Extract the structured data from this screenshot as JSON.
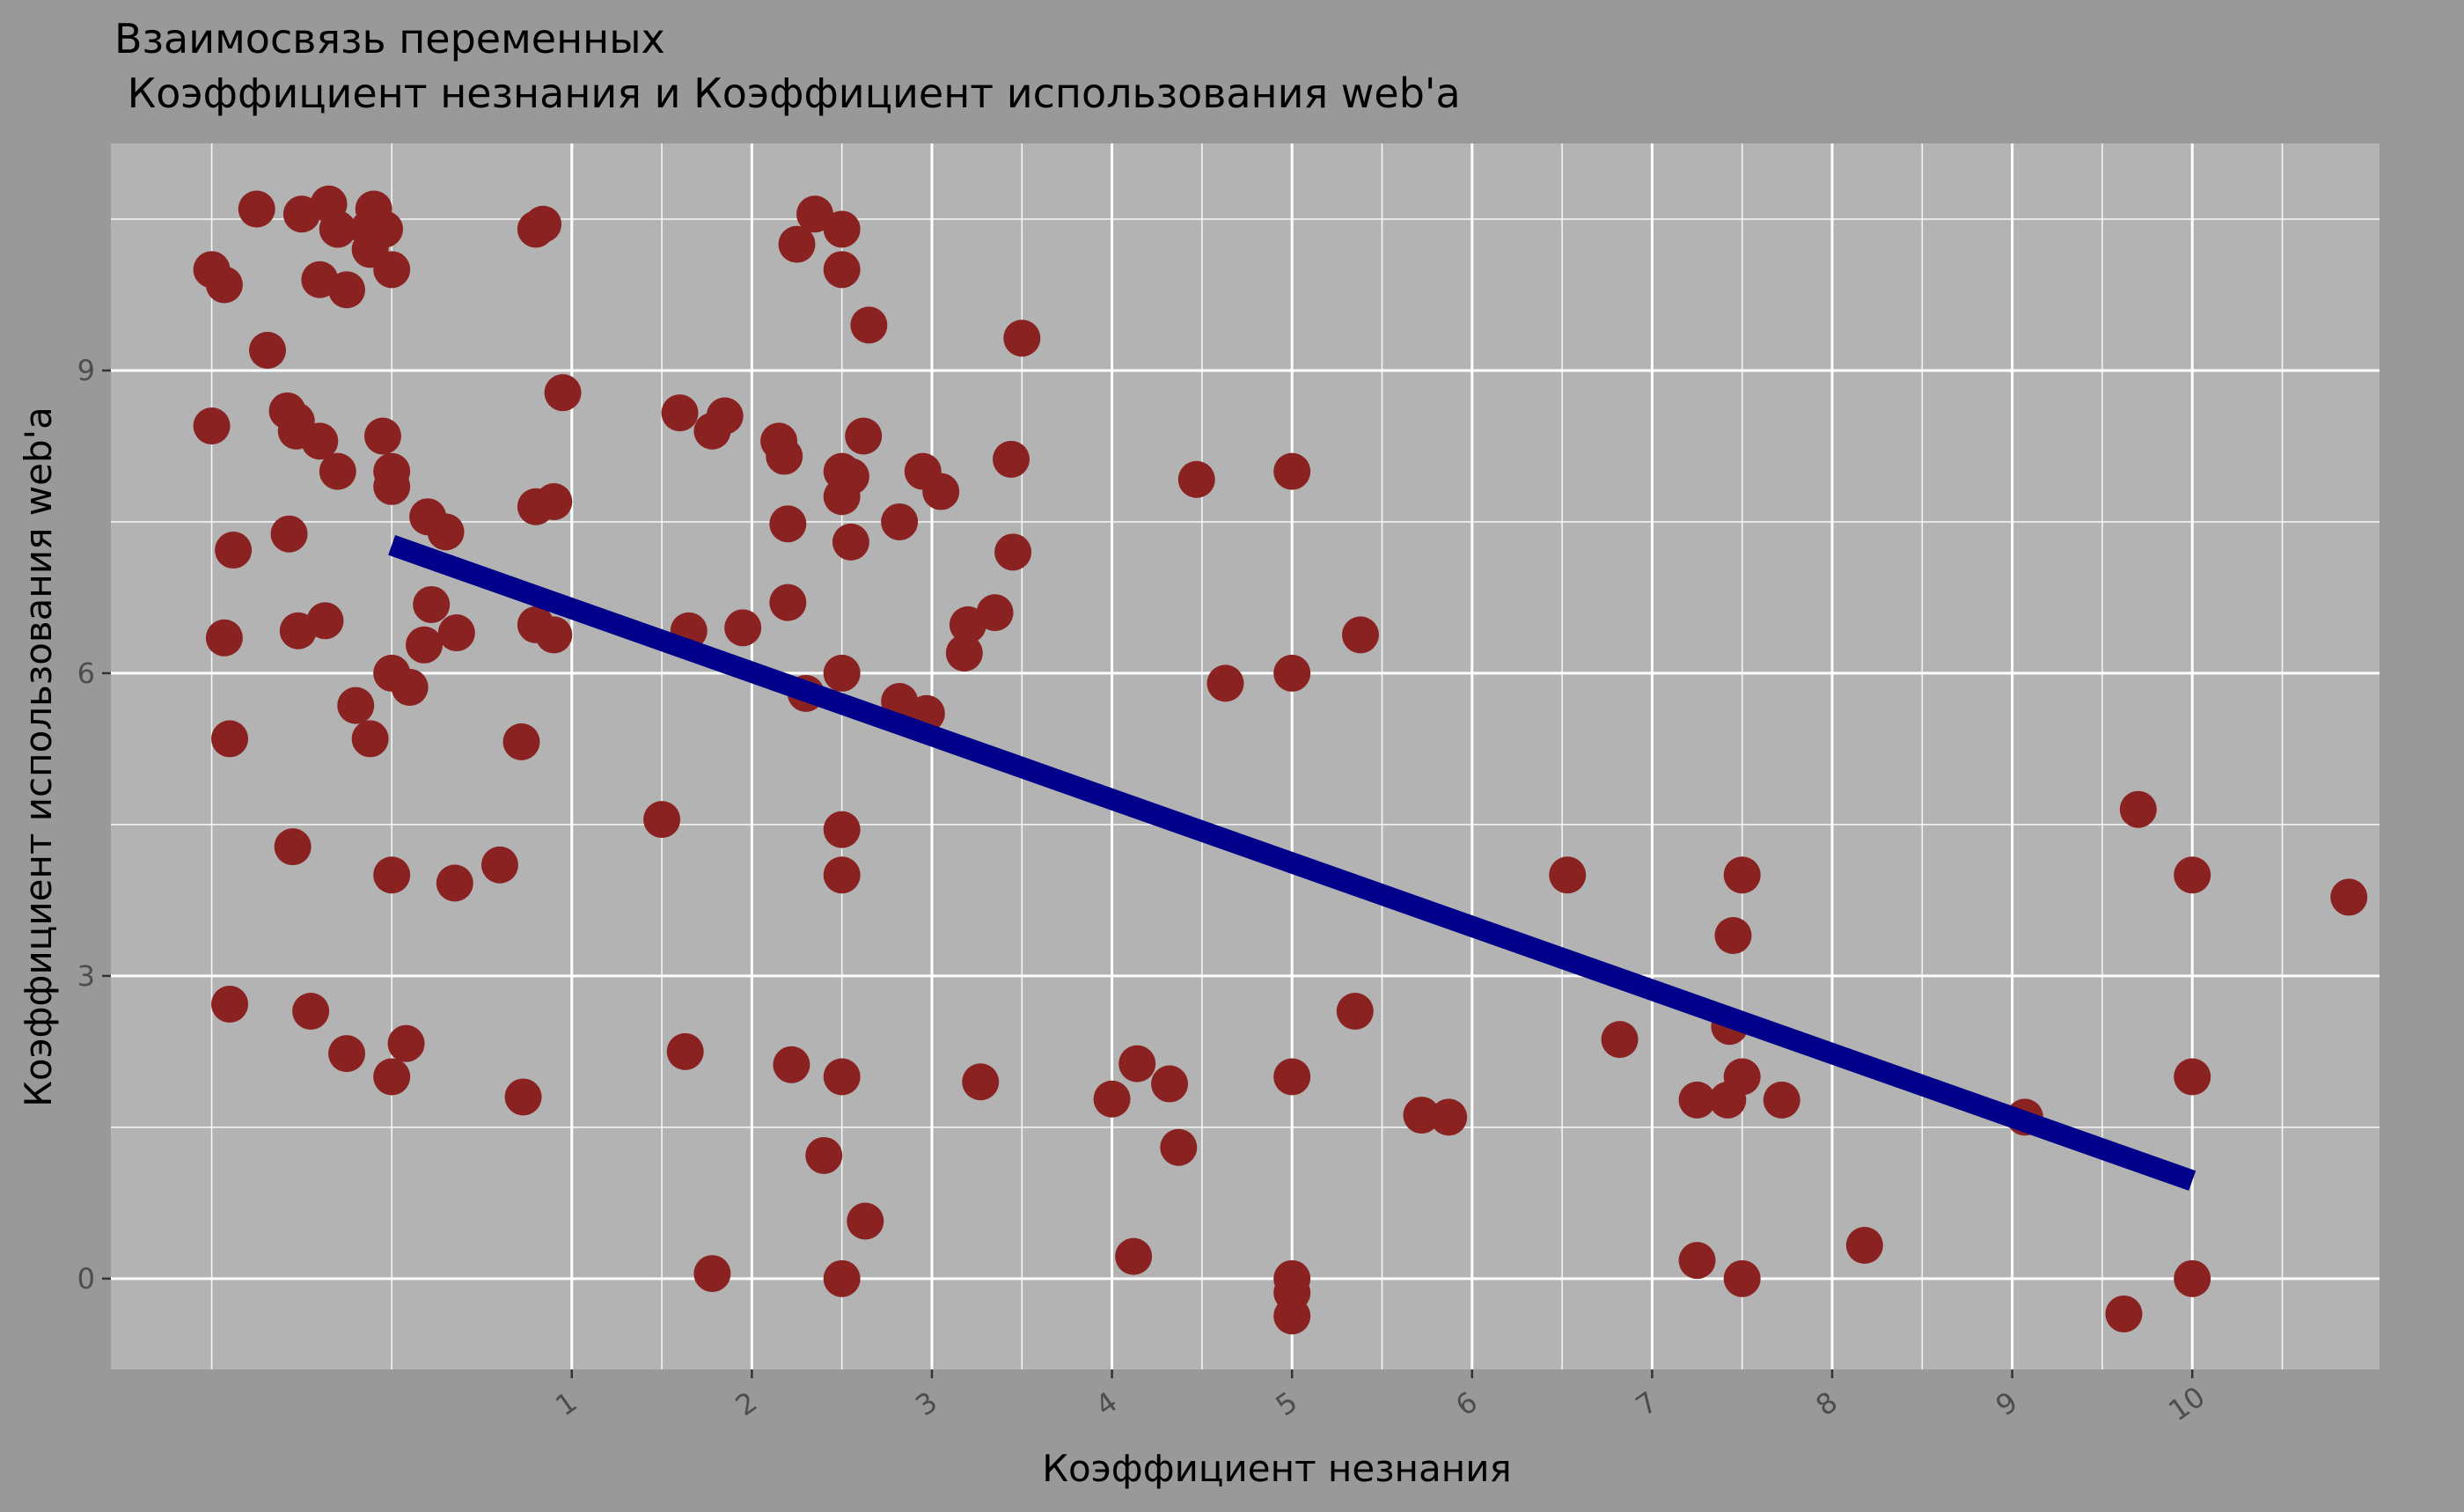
{
  "chart_data": {
    "type": "scatter",
    "title_line1": "Взаимосвязь переменных",
    "title_line2": " Коэффициент незнания и Коэффициент использования web'a",
    "xlabel": "Коэффициент незнания",
    "ylabel": "Коэффициент использования web'a",
    "xlim": [
      -1.56,
      11.04
    ],
    "ylim": [
      -0.9,
      11.25
    ],
    "x_ticks": [
      1,
      2,
      3,
      4,
      5,
      6,
      7,
      8,
      9,
      10
    ],
    "x_tick_labels": [
      "1",
      "2",
      "3",
      "4",
      "5",
      "6",
      "7",
      "8",
      "9",
      "10"
    ],
    "x_minor_grid": [
      -1,
      0,
      1.5,
      2.5,
      3.5,
      4.5,
      5.5,
      6.5,
      7.5,
      8.5,
      9.5,
      10.5
    ],
    "y_ticks": [
      0,
      3,
      6,
      9
    ],
    "y_tick_labels": [
      "0",
      "3",
      "6",
      "9"
    ],
    "y_minor_grid": [
      1.5,
      4.5,
      7.5,
      10.5
    ],
    "grid": true,
    "colors": {
      "points": "#8b2222",
      "trend_line": "#00008b",
      "panel": "#b3b3b3",
      "background": "#999999",
      "grid": "#ffffff"
    },
    "points": [
      [
        -1.0,
        10.0
      ],
      [
        -0.3,
        10.4
      ],
      [
        -0.13,
        10.4
      ],
      [
        -0.04,
        10.4
      ],
      [
        -0.3,
        10.4
      ],
      [
        0.0,
        10.0
      ],
      [
        -0.25,
        9.8
      ],
      [
        -0.4,
        9.9
      ],
      [
        -0.12,
        10.2
      ],
      [
        -0.1,
        10.6
      ],
      [
        -0.35,
        10.65
      ],
      [
        -0.5,
        10.55
      ],
      [
        -0.75,
        10.6
      ],
      [
        -0.93,
        9.85
      ],
      [
        -0.69,
        9.2
      ],
      [
        -0.58,
        8.6
      ],
      [
        -0.53,
        8.4
      ],
      [
        -0.53,
        8.5
      ],
      [
        -0.4,
        8.3
      ],
      [
        -0.3,
        8.0
      ],
      [
        -1.0,
        8.45
      ],
      [
        -0.05,
        8.35
      ],
      [
        0.0,
        8.0
      ],
      [
        0.0,
        7.85
      ],
      [
        0.2,
        7.55
      ],
      [
        0.3,
        7.4
      ],
      [
        -0.88,
        7.22
      ],
      [
        -0.57,
        7.38
      ],
      [
        -0.52,
        6.42
      ],
      [
        -0.37,
        6.52
      ],
      [
        -0.93,
        6.35
      ],
      [
        0.22,
        6.68
      ],
      [
        0.36,
        6.4
      ],
      [
        0.18,
        6.28
      ],
      [
        0.0,
        6.0
      ],
      [
        0.1,
        5.86
      ],
      [
        -0.2,
        5.68
      ],
      [
        -0.12,
        5.35
      ],
      [
        -0.9,
        5.35
      ],
      [
        -0.55,
        4.28
      ],
      [
        0.0,
        4.0
      ],
      [
        0.35,
        3.92
      ],
      [
        -0.9,
        2.72
      ],
      [
        -0.45,
        2.65
      ],
      [
        -0.25,
        2.23
      ],
      [
        0.08,
        2.33
      ],
      [
        0.0,
        2.0
      ],
      [
        0.8,
        10.4
      ],
      [
        0.84,
        10.45
      ],
      [
        0.95,
        8.78
      ],
      [
        0.8,
        7.65
      ],
      [
        0.9,
        7.7
      ],
      [
        0.8,
        6.48
      ],
      [
        0.9,
        6.38
      ],
      [
        0.72,
        5.32
      ],
      [
        0.6,
        4.1
      ],
      [
        0.73,
        1.8
      ],
      [
        1.6,
        8.58
      ],
      [
        1.78,
        8.4
      ],
      [
        1.85,
        8.55
      ],
      [
        1.65,
        6.42
      ],
      [
        1.95,
        6.45
      ],
      [
        1.5,
        4.55
      ],
      [
        1.63,
        2.25
      ],
      [
        1.78,
        0.05
      ],
      [
        2.35,
        10.55
      ],
      [
        2.25,
        10.25
      ],
      [
        2.5,
        10.4
      ],
      [
        2.5,
        10.0
      ],
      [
        2.65,
        9.45
      ],
      [
        2.15,
        8.3
      ],
      [
        2.18,
        8.15
      ],
      [
        2.62,
        8.35
      ],
      [
        2.5,
        8.0
      ],
      [
        2.55,
        7.95
      ],
      [
        2.5,
        7.75
      ],
      [
        2.2,
        7.48
      ],
      [
        2.55,
        7.3
      ],
      [
        2.2,
        6.7
      ],
      [
        2.3,
        5.8
      ],
      [
        2.5,
        6.0
      ],
      [
        2.5,
        4.45
      ],
      [
        2.5,
        4.0
      ],
      [
        2.22,
        2.12
      ],
      [
        2.5,
        2.0
      ],
      [
        2.4,
        1.22
      ],
      [
        2.63,
        0.57
      ],
      [
        2.5,
        0.0
      ],
      [
        2.95,
        8.0
      ],
      [
        3.05,
        7.8
      ],
      [
        2.82,
        7.5
      ],
      [
        3.5,
        9.32
      ],
      [
        3.44,
        8.12
      ],
      [
        3.45,
        7.2
      ],
      [
        3.2,
        6.48
      ],
      [
        3.35,
        6.6
      ],
      [
        3.18,
        6.2
      ],
      [
        2.82,
        5.72
      ],
      [
        2.97,
        5.6
      ],
      [
        3.27,
        1.95
      ],
      [
        4.47,
        7.92
      ],
      [
        5.0,
        8.0
      ],
      [
        4.63,
        5.9
      ],
      [
        5.0,
        6.0
      ],
      [
        5.38,
        6.38
      ],
      [
        5.35,
        2.65
      ],
      [
        4.14,
        2.13
      ],
      [
        4.32,
        1.93
      ],
      [
        4.0,
        1.78
      ],
      [
        5.0,
        2.0
      ],
      [
        4.37,
        1.3
      ],
      [
        4.12,
        0.22
      ],
      [
        5.72,
        1.62
      ],
      [
        5.87,
        1.6
      ],
      [
        5.0,
        0.0
      ],
      [
        5.0,
        -0.14
      ],
      [
        5.0,
        -0.37
      ],
      [
        6.53,
        4.0
      ],
      [
        6.82,
        2.37
      ],
      [
        7.5,
        4.0
      ],
      [
        7.45,
        3.4
      ],
      [
        7.43,
        2.5
      ],
      [
        7.5,
        2.0
      ],
      [
        7.25,
        1.77
      ],
      [
        7.42,
        1.77
      ],
      [
        7.72,
        1.77
      ],
      [
        7.25,
        0.18
      ],
      [
        7.5,
        0.0
      ],
      [
        8.18,
        0.33
      ],
      [
        9.07,
        1.6
      ],
      [
        9.7,
        4.65
      ],
      [
        10.0,
        4.0
      ],
      [
        10.0,
        2.0
      ],
      [
        10.0,
        0.0
      ],
      [
        9.62,
        -0.35
      ],
      [
        10.87,
        3.78
      ]
    ],
    "trend_line": {
      "x": [
        0.0,
        10.0
      ],
      "y": [
        7.27,
        0.97
      ]
    }
  }
}
